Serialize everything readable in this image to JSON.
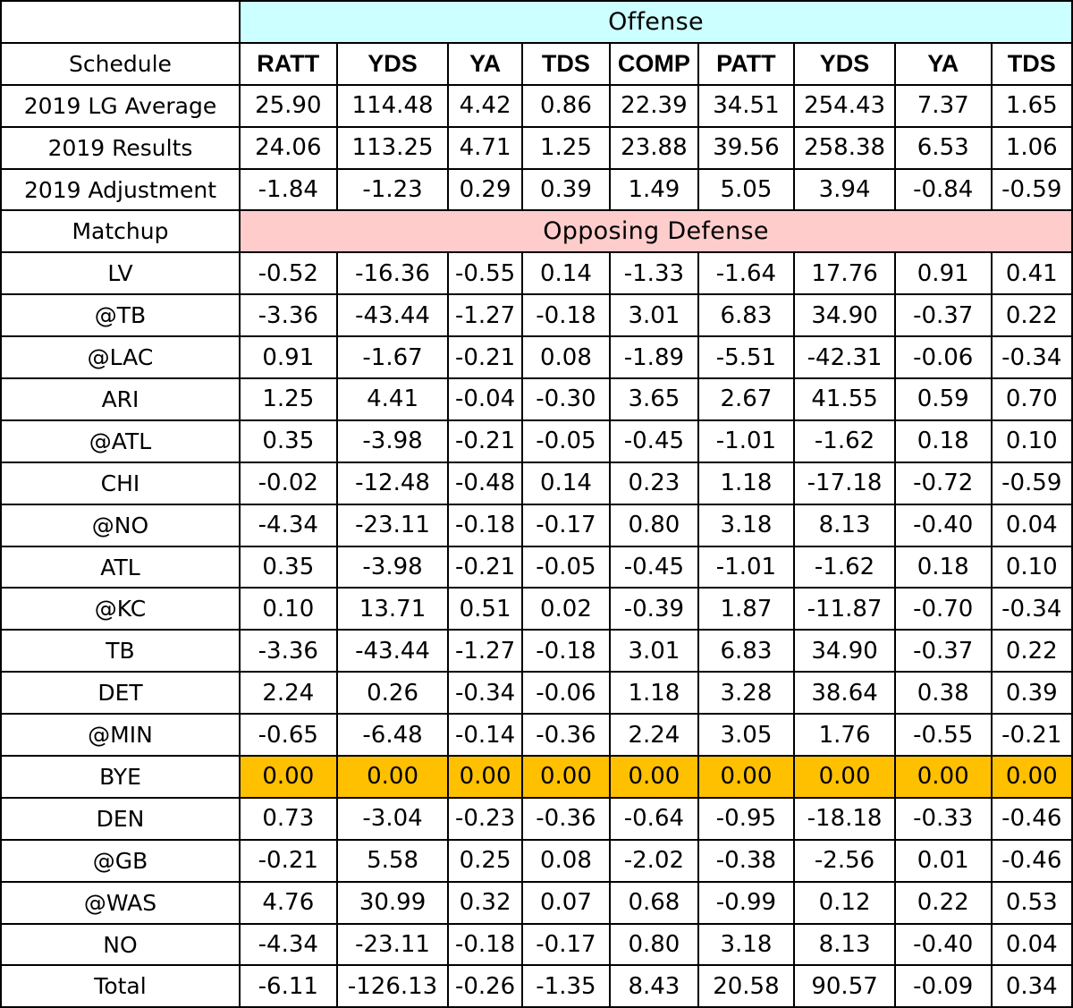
{
  "colors": {
    "offense_band": "#ccffff",
    "defense_band": "#ffcccc",
    "bye_highlight": "#ffc000",
    "grid": "#000000"
  },
  "offense_label": "Offense",
  "schedule_label": "Schedule",
  "columns": [
    "RATT",
    "YDS",
    "YA",
    "TDS",
    "COMP",
    "PATT",
    "YDS",
    "YA",
    "TDS"
  ],
  "league_rows": [
    {
      "label": "2019 LG Average",
      "values": [
        "25.90",
        "114.48",
        "4.42",
        "0.86",
        "22.39",
        "34.51",
        "254.43",
        "7.37",
        "1.65"
      ]
    },
    {
      "label": "2019 Results",
      "values": [
        "24.06",
        "113.25",
        "4.71",
        "1.25",
        "23.88",
        "39.56",
        "258.38",
        "6.53",
        "1.06"
      ]
    },
    {
      "label": "2019 Adjustment",
      "values": [
        "-1.84",
        "-1.23",
        "0.29",
        "0.39",
        "1.49",
        "5.05",
        "3.94",
        "-0.84",
        "-0.59"
      ]
    }
  ],
  "matchup_label": "Matchup",
  "opposing_label": "Opposing Defense",
  "matchups": [
    {
      "label": "LV",
      "values": [
        "-0.52",
        "-16.36",
        "-0.55",
        "0.14",
        "-1.33",
        "-1.64",
        "17.76",
        "0.91",
        "0.41"
      ]
    },
    {
      "label": "@TB",
      "values": [
        "-3.36",
        "-43.44",
        "-1.27",
        "-0.18",
        "3.01",
        "6.83",
        "34.90",
        "-0.37",
        "0.22"
      ]
    },
    {
      "label": "@LAC",
      "values": [
        "0.91",
        "-1.67",
        "-0.21",
        "0.08",
        "-1.89",
        "-5.51",
        "-42.31",
        "-0.06",
        "-0.34"
      ]
    },
    {
      "label": "ARI",
      "values": [
        "1.25",
        "4.41",
        "-0.04",
        "-0.30",
        "3.65",
        "2.67",
        "41.55",
        "0.59",
        "0.70"
      ]
    },
    {
      "label": "@ATL",
      "values": [
        "0.35",
        "-3.98",
        "-0.21",
        "-0.05",
        "-0.45",
        "-1.01",
        "-1.62",
        "0.18",
        "0.10"
      ]
    },
    {
      "label": "CHI",
      "values": [
        "-0.02",
        "-12.48",
        "-0.48",
        "0.14",
        "0.23",
        "1.18",
        "-17.18",
        "-0.72",
        "-0.59"
      ]
    },
    {
      "label": "@NO",
      "values": [
        "-4.34",
        "-23.11",
        "-0.18",
        "-0.17",
        "0.80",
        "3.18",
        "8.13",
        "-0.40",
        "0.04"
      ]
    },
    {
      "label": "ATL",
      "values": [
        "0.35",
        "-3.98",
        "-0.21",
        "-0.05",
        "-0.45",
        "-1.01",
        "-1.62",
        "0.18",
        "0.10"
      ]
    },
    {
      "label": "@KC",
      "values": [
        "0.10",
        "13.71",
        "0.51",
        "0.02",
        "-0.39",
        "1.87",
        "-11.87",
        "-0.70",
        "-0.34"
      ]
    },
    {
      "label": "TB",
      "values": [
        "-3.36",
        "-43.44",
        "-1.27",
        "-0.18",
        "3.01",
        "6.83",
        "34.90",
        "-0.37",
        "0.22"
      ]
    },
    {
      "label": "DET",
      "values": [
        "2.24",
        "0.26",
        "-0.34",
        "-0.06",
        "1.18",
        "3.28",
        "38.64",
        "0.38",
        "0.39"
      ]
    },
    {
      "label": "@MIN",
      "values": [
        "-0.65",
        "-6.48",
        "-0.14",
        "-0.36",
        "2.24",
        "3.05",
        "1.76",
        "-0.55",
        "-0.21"
      ]
    },
    {
      "label": "BYE",
      "highlight": true,
      "values": [
        "0.00",
        "0.00",
        "0.00",
        "0.00",
        "0.00",
        "0.00",
        "0.00",
        "0.00",
        "0.00"
      ]
    },
    {
      "label": "DEN",
      "values": [
        "0.73",
        "-3.04",
        "-0.23",
        "-0.36",
        "-0.64",
        "-0.95",
        "-18.18",
        "-0.33",
        "-0.46"
      ]
    },
    {
      "label": "@GB",
      "values": [
        "-0.21",
        "5.58",
        "0.25",
        "0.08",
        "-2.02",
        "-0.38",
        "-2.56",
        "0.01",
        "-0.46"
      ]
    },
    {
      "label": "@WAS",
      "values": [
        "4.76",
        "30.99",
        "0.32",
        "0.07",
        "0.68",
        "-0.99",
        "0.12",
        "0.22",
        "0.53"
      ]
    },
    {
      "label": "NO",
      "values": [
        "-4.34",
        "-23.11",
        "-0.18",
        "-0.17",
        "0.80",
        "3.18",
        "8.13",
        "-0.40",
        "0.04"
      ]
    }
  ],
  "total": {
    "label": "Total",
    "values": [
      "-6.11",
      "-126.13",
      "-0.26",
      "-1.35",
      "8.43",
      "20.58",
      "90.57",
      "-0.09",
      "0.34"
    ]
  }
}
